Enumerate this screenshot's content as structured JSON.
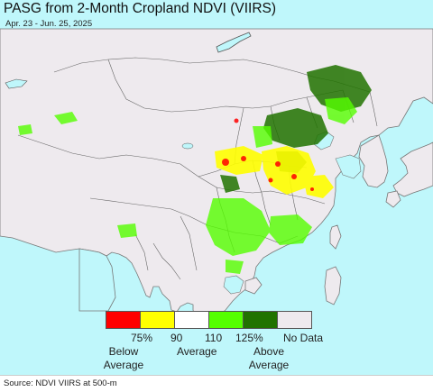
{
  "title": "PASG from 2-Month Cropland NDVI (VIIRS)",
  "date_range": "Apr. 23 - Jun. 25, 2025",
  "legend": {
    "swatches": [
      {
        "color": "#ff0000",
        "meaning": "below 75%"
      },
      {
        "color": "#ffff00",
        "meaning": "75-90%"
      },
      {
        "color": "#ffffff",
        "meaning": "90-110%"
      },
      {
        "color": "#55ff00",
        "meaning": "110-125%"
      },
      {
        "color": "#217300",
        "meaning": "above 125%"
      },
      {
        "color": "#eeeaee",
        "meaning": "no data"
      }
    ],
    "tick_75": "75%",
    "tick_90": "90",
    "tick_110": "110",
    "tick_125": "125%",
    "no_data": "No Data",
    "below_average": "Below\nAverage",
    "average": "Average",
    "above_average": "Above\nAverage"
  },
  "source": "Source: NDVI VIIRS at 500-m",
  "colors": {
    "ocean": "#bff7fb",
    "land_no_data": "#eeeaee",
    "border": "#666666",
    "above_dark_green": "#217300",
    "above_green": "#55ff00",
    "below_yellow": "#ffff00",
    "below_red": "#ff0000"
  }
}
